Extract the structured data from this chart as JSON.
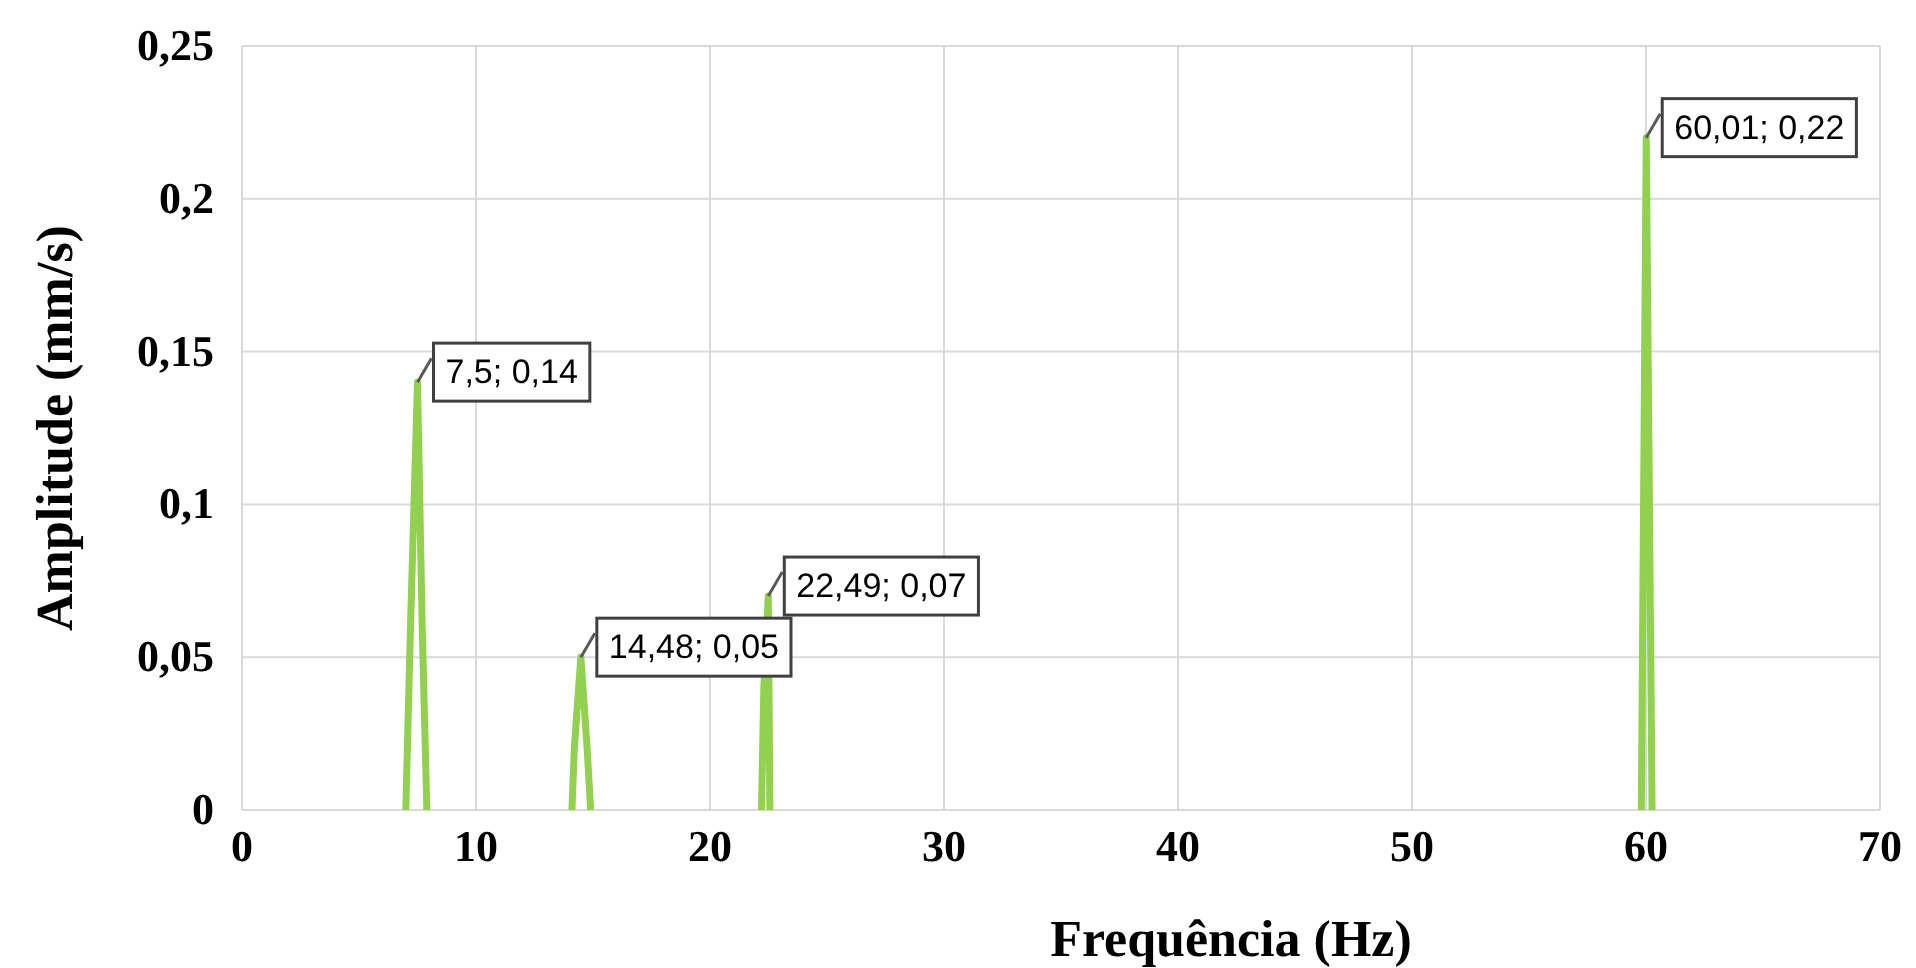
{
  "chart_data": {
    "type": "line",
    "xlabel": "Frequência (Hz)",
    "ylabel": "Amplitude (mm/s)",
    "x": [
      7.0,
      7.2,
      7.5,
      7.7,
      7.9,
      null,
      14.1,
      14.2,
      14.48,
      14.75,
      14.9,
      null,
      22.2,
      22.3,
      22.49,
      22.56,
      null,
      59.8,
      60.01,
      60.26
    ],
    "series": [
      {
        "color": "#92d050",
        "values": [
          0,
          0.06,
          0.14,
          0.06,
          0,
          null,
          0,
          0.02,
          0.05,
          0.02,
          0,
          null,
          0,
          0.04,
          0.07,
          0,
          null,
          0,
          0.22,
          0
        ]
      }
    ],
    "xlim": [
      0,
      70
    ],
    "xticks": [
      0,
      10,
      20,
      30,
      40,
      50,
      60,
      70
    ],
    "ylim": [
      0,
      0.25
    ],
    "yticks": [
      0,
      {
        "value": 0.05,
        "label": "0,05"
      },
      {
        "value": 0.1,
        "label": "0,1"
      },
      {
        "value": 0.15,
        "label": "0,15"
      },
      {
        "value": 0.2,
        "label": "0,2"
      },
      {
        "value": 0.25,
        "label": "0,25"
      }
    ],
    "grid": true,
    "marker": "none",
    "line_style": "solid",
    "annotations": [
      {
        "text": "7,5; 0,14",
        "x": 7.5,
        "y": 0.14
      },
      {
        "text": "14,48; 0,05",
        "x": 14.48,
        "y": 0.05
      },
      {
        "text": "22,49; 0,07",
        "x": 22.49,
        "y": 0.07
      },
      {
        "text": "60,01; 0,22",
        "x": 60.01,
        "y": 0.22
      }
    ]
  }
}
